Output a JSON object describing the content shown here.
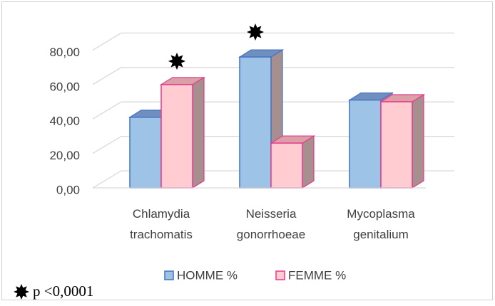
{
  "chart_data": {
    "type": "bar3d",
    "categories": [
      "Chlamydia trachomatis",
      "Neisseria gonorrhoeae",
      "Mycoplasma genitalium"
    ],
    "series": [
      {
        "name": "HOMME %",
        "color": "#9dc3e6",
        "edge": "#4472c4",
        "values": [
          41,
          76,
          51
        ]
      },
      {
        "name": "FEMME %",
        "color": "#ffccd2",
        "edge": "#e8398c",
        "values": [
          60,
          26,
          50
        ]
      }
    ],
    "ylim": [
      0,
      80
    ],
    "yticks": [
      {
        "value": 0,
        "label": "0,00"
      },
      {
        "value": 20,
        "label": "20,00"
      },
      {
        "value": 40,
        "label": "40,00"
      },
      {
        "value": 60,
        "label": "60,00"
      },
      {
        "value": 80,
        "label": "80,00"
      }
    ],
    "grid": true,
    "legend": "bottom",
    "annotation": "p <0,0001"
  }
}
